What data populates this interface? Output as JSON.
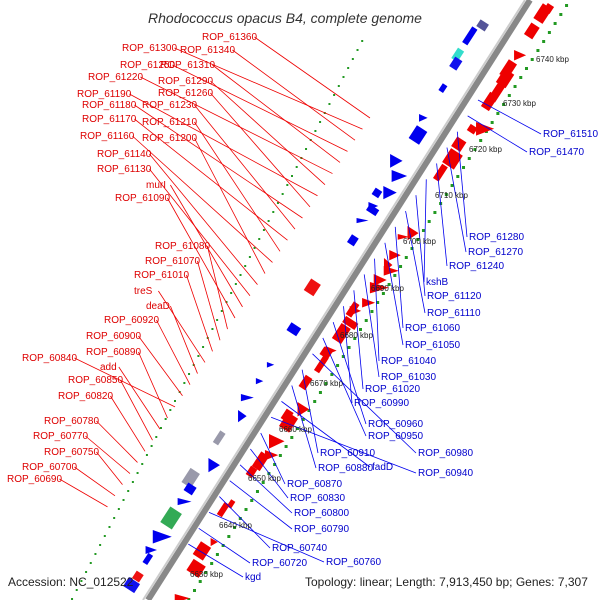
{
  "title": "Rhodococcus opacus B4, complete genome",
  "footer": {
    "accession": "Accession: NC_012522",
    "topology": "Topology: linear; Length: 7,913,450 bp; Genes: 7,307"
  },
  "colors": {
    "forward": "#ee0000",
    "reverse": "#0000ee",
    "axis": "#999999",
    "scale_dots": "#229922"
  },
  "scale_labels": [
    "6630 kbp",
    "6640 kbp",
    "6650 kbp",
    "6660 kbp",
    "6670 kbp",
    "6680 kbp",
    "6690 kbp",
    "6700 kbp",
    "6710 kbp",
    "6720 kbp",
    "6730 kbp",
    "6740 kbp"
  ],
  "left_labels": [
    "ROP_61360",
    "ROP_61300",
    "ROP_61340",
    "ROP_61250",
    "ROP_61310",
    "ROP_61220",
    "ROP_61290",
    "ROP_61190",
    "ROP_61260",
    "ROP_61180",
    "ROP_61230",
    "ROP_61170",
    "ROP_61210",
    "ROP_61160",
    "ROP_61200",
    "ROP_61140",
    "ROP_61130",
    "murI",
    "ROP_61090",
    "ROP_61080",
    "ROP_61070",
    "ROP_61010",
    "treS",
    "deaD",
    "ROP_60920",
    "ROP_60900",
    "ROP_60840",
    "ROP_60890",
    "add",
    "ROP_60850",
    "ROP_60820",
    "ROP_60780",
    "ROP_60770",
    "ROP_60750",
    "ROP_60700",
    "ROP_60690"
  ],
  "right_labels": [
    "ROP_61510",
    "ROP_61470",
    "ROP_61280",
    "ROP_61270",
    "ROP_61240",
    "kshB",
    "ROP_61120",
    "ROP_61110",
    "ROP_61060",
    "ROP_61050",
    "ROP_61040",
    "ROP_61030",
    "ROP_61020",
    "ROP_60990",
    "ROP_60960",
    "ROP_60950",
    "ROP_60980",
    "ROP_60910",
    "ROP_60880",
    "fadD",
    "ROP_60940",
    "ROP_60870",
    "ROP_60830",
    "ROP_60800",
    "ROP_60790",
    "ROP_60740",
    "ROP_60760",
    "ROP_60720",
    "kgd"
  ]
}
